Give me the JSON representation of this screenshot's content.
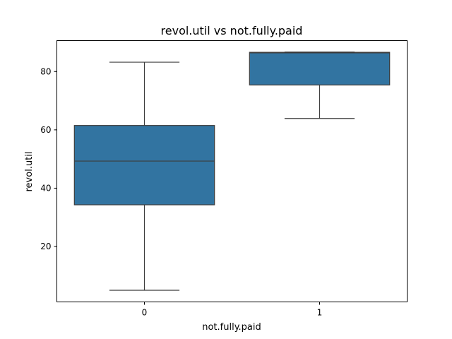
{
  "chart_data": {
    "type": "box",
    "title": "revol.util vs not.fully.paid",
    "xlabel": "not.fully.paid",
    "ylabel": "revol.util",
    "categories": [
      "0",
      "1"
    ],
    "boxes": [
      {
        "category": "0",
        "whisker_low": 5.0,
        "q1": 34.3,
        "median": 49.3,
        "q3": 61.5,
        "whisker_high": 83.2
      },
      {
        "category": "1",
        "whisker_low": 63.9,
        "q1": 75.4,
        "median": 86.4,
        "q3": 86.6,
        "whisker_high": 86.7
      }
    ],
    "ylim": [
      1.0,
      90.6
    ],
    "yticks": [
      20,
      40,
      60,
      80
    ],
    "grid": false,
    "box_color": "#3274a1",
    "line_color": "#3d3d3d"
  }
}
